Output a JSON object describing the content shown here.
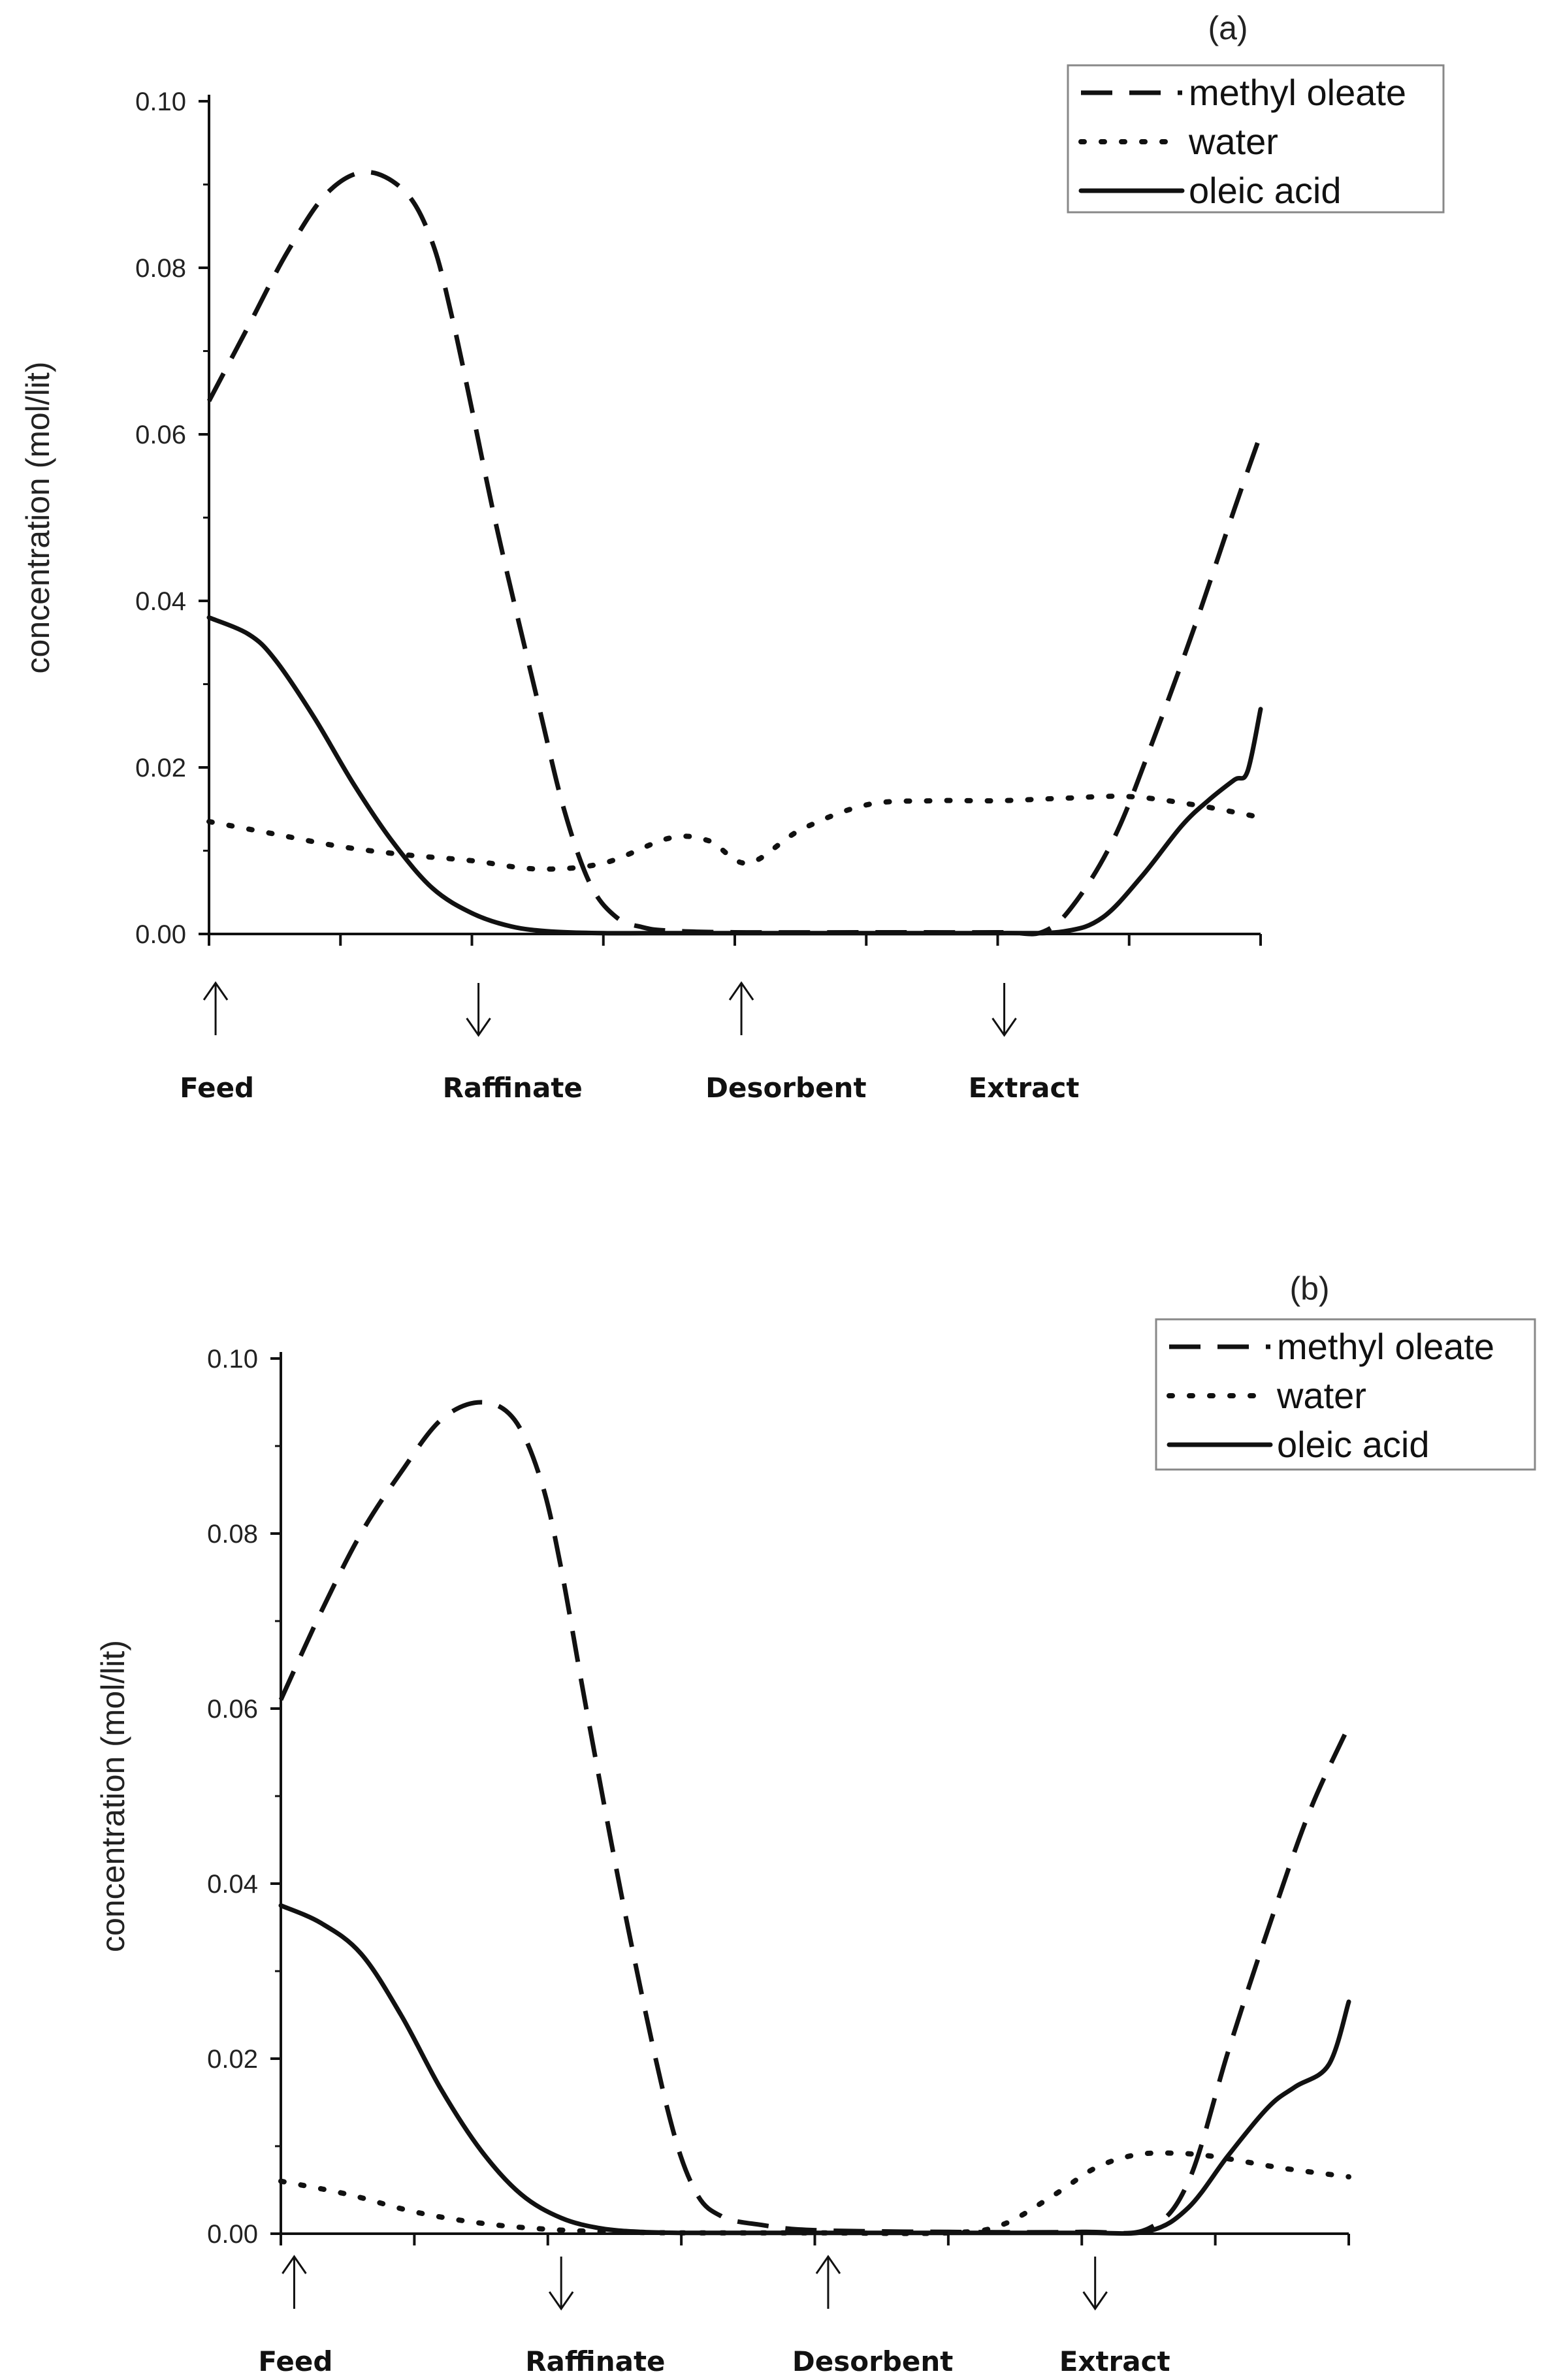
{
  "chart_data": [
    {
      "type": "line",
      "panel_label": "(a)",
      "ylabel": "concentration (mol/lit)",
      "xlabel": "",
      "xlim": [
        0,
        8
      ],
      "ylim": [
        0,
        0.1
      ],
      "yticks": [
        "0.00",
        "0.02",
        "0.04",
        "0.06",
        "0.08",
        "0.10"
      ],
      "ports": [
        {
          "name": "Feed",
          "x": 0.05,
          "dir": "up"
        },
        {
          "name": "Raffinate",
          "x": 2.05,
          "dir": "down"
        },
        {
          "name": "Desorbent",
          "x": 4.05,
          "dir": "up"
        },
        {
          "name": "Extract",
          "x": 6.05,
          "dir": "down"
        }
      ],
      "series": [
        {
          "name": "methyl oleate",
          "style": "dashed",
          "x": [
            0,
            0.3,
            0.6,
            0.9,
            1.2,
            1.5,
            1.7,
            1.85,
            2.0,
            2.2,
            2.5,
            2.7,
            2.9,
            3.1,
            3.3,
            3.5,
            4.0,
            5.0,
            6.0,
            6.35,
            6.6,
            6.9,
            7.2,
            7.5,
            7.8,
            8.0
          ],
          "y": [
            0.064,
            0.073,
            0.082,
            0.089,
            0.0915,
            0.089,
            0.083,
            0.074,
            0.063,
            0.048,
            0.028,
            0.015,
            0.006,
            0.002,
            0.0008,
            0.0004,
            0.0002,
            0.0002,
            0.0002,
            0.0003,
            0.004,
            0.012,
            0.024,
            0.037,
            0.051,
            0.06
          ]
        },
        {
          "name": "water",
          "style": "dotted",
          "x": [
            0,
            0.5,
            1.0,
            1.5,
            2.0,
            2.5,
            3.0,
            3.5,
            3.8,
            4.1,
            4.5,
            5.0,
            5.5,
            6.0,
            6.5,
            7.0,
            7.5,
            8.0
          ],
          "y": [
            0.0135,
            0.012,
            0.0105,
            0.0095,
            0.0088,
            0.0078,
            0.0085,
            0.0115,
            0.0112,
            0.0085,
            0.0125,
            0.0155,
            0.016,
            0.016,
            0.0163,
            0.0165,
            0.0155,
            0.014
          ]
        },
        {
          "name": "oleic acid",
          "style": "solid",
          "x": [
            0,
            0.3,
            0.5,
            0.8,
            1.1,
            1.4,
            1.7,
            2.0,
            2.3,
            2.6,
            3.0,
            3.5,
            4.0,
            5.0,
            6.0,
            6.5,
            6.8,
            7.1,
            7.4,
            7.6,
            7.8,
            7.9,
            8.0
          ],
          "y": [
            0.038,
            0.036,
            0.033,
            0.026,
            0.018,
            0.011,
            0.0055,
            0.0025,
            0.0009,
            0.0003,
            0.0001,
            0.0001,
            0.0001,
            0.0001,
            0.0001,
            0.0003,
            0.002,
            0.007,
            0.013,
            0.016,
            0.0185,
            0.0195,
            0.027
          ]
        }
      ]
    },
    {
      "type": "line",
      "panel_label": "(b)",
      "ylabel": "concentration (mol/lit)",
      "xlabel": "",
      "xlim": [
        0,
        8
      ],
      "ylim": [
        0,
        0.1
      ],
      "yticks": [
        "0.00",
        "0.02",
        "0.04",
        "0.06",
        "0.08",
        "0.10"
      ],
      "ports": [
        {
          "name": "Feed",
          "x": 0.1,
          "dir": "up"
        },
        {
          "name": "Raffinate",
          "x": 2.1,
          "dir": "down"
        },
        {
          "name": "Desorbent",
          "x": 4.1,
          "dir": "up"
        },
        {
          "name": "Extract",
          "x": 6.1,
          "dir": "down"
        }
      ],
      "series": [
        {
          "name": "methyl oleate",
          "style": "dashed",
          "x": [
            0,
            0.3,
            0.6,
            0.9,
            1.2,
            1.5,
            1.75,
            1.95,
            2.1,
            2.3,
            2.6,
            2.9,
            3.1,
            3.3,
            3.6,
            4.0,
            5.0,
            6.0,
            6.5,
            6.8,
            7.1,
            7.4,
            7.7,
            8.0
          ],
          "y": [
            0.061,
            0.071,
            0.08,
            0.087,
            0.093,
            0.095,
            0.093,
            0.086,
            0.076,
            0.059,
            0.035,
            0.014,
            0.005,
            0.002,
            0.001,
            0.0004,
            0.0002,
            0.0002,
            0.0006,
            0.006,
            0.021,
            0.035,
            0.048,
            0.058
          ]
        },
        {
          "name": "water",
          "style": "dotted",
          "x": [
            0,
            0.5,
            1.0,
            1.5,
            2.0,
            2.5,
            3.0,
            4.0,
            5.0,
            5.4,
            5.8,
            6.1,
            6.4,
            6.7,
            7.0,
            7.5,
            8.0
          ],
          "y": [
            0.006,
            0.0045,
            0.0025,
            0.0012,
            0.0005,
            0.0002,
            0.0001,
            0.0001,
            0.0001,
            0.001,
            0.0045,
            0.0075,
            0.009,
            0.0092,
            0.0088,
            0.0075,
            0.0065
          ]
        },
        {
          "name": "oleic acid",
          "style": "solid",
          "x": [
            0,
            0.3,
            0.6,
            0.9,
            1.2,
            1.5,
            1.8,
            2.1,
            2.4,
            2.7,
            3.0,
            3.5,
            4.0,
            5.0,
            6.0,
            6.5,
            6.8,
            7.1,
            7.4,
            7.6,
            7.85,
            8.0
          ],
          "y": [
            0.0375,
            0.0355,
            0.032,
            0.025,
            0.0165,
            0.0095,
            0.0045,
            0.0018,
            0.0006,
            0.0002,
            0.0001,
            0.0001,
            0.0001,
            0.0001,
            0.0001,
            0.0003,
            0.003,
            0.009,
            0.0145,
            0.0168,
            0.0193,
            0.0265
          ]
        }
      ]
    }
  ]
}
